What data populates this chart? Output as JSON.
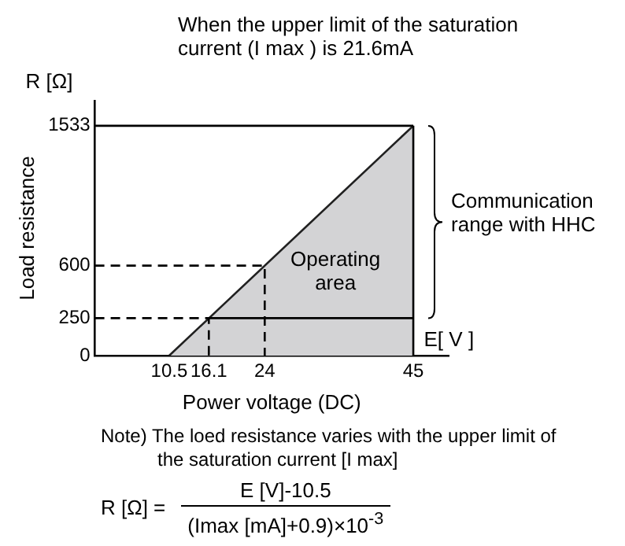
{
  "chart_data": {
    "type": "line",
    "title": "When the upper limit of the saturation current (I max ) is 21.6mA",
    "xlabel": "Power voltage (DC)",
    "ylabel": "Load resistance",
    "xlim": [
      0,
      50
    ],
    "xticks": [
      10.5,
      16.1,
      24,
      45
    ],
    "ylim": [
      0,
      1700
    ],
    "yticks": [
      0,
      250,
      600,
      1533
    ],
    "marker": "none",
    "series": [
      {
        "type": "area",
        "color": "#d3d3d5",
        "x": [
          10.5,
          45
        ],
        "values": [
          0,
          1533
        ]
      },
      {
        "line_style": "dashed",
        "color": "#000000",
        "x": [
          0,
          16.1,
          16.1
        ],
        "values": [
          250,
          250,
          0
        ]
      },
      {
        "line_style": "dashed",
        "color": "#000000",
        "x": [
          0,
          24,
          24
        ],
        "values": [
          600,
          600,
          0
        ]
      },
      {
        "line_style": "solid",
        "color": "#000000",
        "x": [
          16.1,
          45
        ],
        "values": [
          250,
          250
        ]
      },
      {
        "line_style": "solid",
        "color": "#000000",
        "x": [
          0,
          45
        ],
        "values": [
          1533,
          1533
        ]
      },
      {
        "line_style": "solid",
        "color": "#000000",
        "x": [
          45,
          45
        ],
        "values": [
          0,
          1533
        ]
      }
    ],
    "annotations": [
      "R [Ω]",
      "E[ V ]",
      "Operating area",
      "Communication range with HHC",
      "Note) The loed resistance varies with the upper limit of the saturation current [I max]",
      "R [Ω] =",
      "E [V]-10.5",
      "(Imax [mA]+0.9)×10$^{-3}$"
    ]
  }
}
